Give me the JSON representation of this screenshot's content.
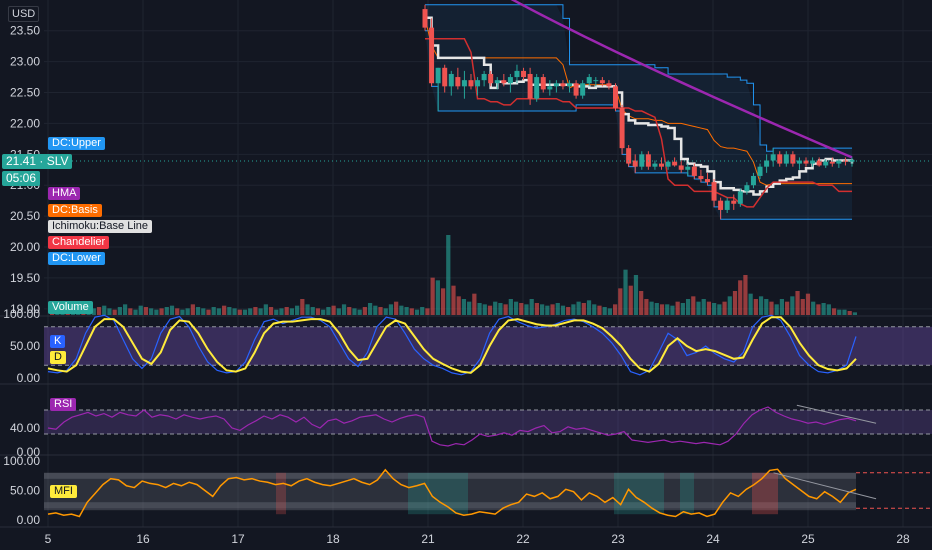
{
  "currency": "USD",
  "symbol": "SLV",
  "last_price": "21.41",
  "countdown": "05:06",
  "legend": [
    {
      "id": "dc_upper",
      "label": "DC:Upper",
      "bg": "#2196f3",
      "fg": "#ffffff"
    },
    {
      "id": "hma",
      "label": "HMA",
      "bg": "#9c27b0",
      "fg": "#ffffff"
    },
    {
      "id": "dc_basis",
      "label": "DC:Basis",
      "bg": "#ff6d00",
      "fg": "#ffffff"
    },
    {
      "id": "ichimoku",
      "label": "Ichimoku:Base Line",
      "bg": "#e0e0e0",
      "fg": "#131722"
    },
    {
      "id": "chandelier",
      "label": "Chandelier",
      "bg": "#f23645",
      "fg": "#ffffff"
    },
    {
      "id": "dc_lower",
      "label": "DC:Lower",
      "bg": "#2196f3",
      "fg": "#ffffff"
    },
    {
      "id": "volume",
      "label": "Volume",
      "bg": "#26a69a",
      "fg": "#ffffff"
    }
  ],
  "osc_labels": [
    {
      "id": "k",
      "label": "K",
      "bg": "#2962ff",
      "fg": "#ffffff"
    },
    {
      "id": "d",
      "label": "D",
      "bg": "#ffeb3b",
      "fg": "#131722"
    },
    {
      "id": "rsi",
      "label": "RSI",
      "bg": "#9c27b0",
      "fg": "#ffffff"
    },
    {
      "id": "mfi",
      "label": "MFI",
      "bg": "#ffeb3b",
      "fg": "#131722"
    }
  ],
  "colors": {
    "up": "#26a69a",
    "down": "#ef5350",
    "hma": "#9c27b0",
    "ichimoku": "#e6e6e6",
    "dc": "#2196f3",
    "dc_basis": "#ff6d00",
    "chandelier": "#d32f2f",
    "k": "#2962ff",
    "d": "#ffeb3b",
    "rsi": "#9c27b0",
    "mfi": "#ff9800"
  },
  "chart_data": {
    "type": "candlestick",
    "x_ticks": [
      "5",
      "16",
      "17",
      "18",
      "21",
      "22",
      "23",
      "24",
      "25",
      "28"
    ],
    "price_axis": {
      "ticks": [
        "23.50",
        "23.00",
        "22.50",
        "22.00",
        "21.50",
        "21.00",
        "20.50",
        "20.00",
        "19.50",
        "19.00"
      ],
      "range": [
        18.9,
        23.9
      ]
    },
    "stoch_axis": {
      "ticks": [
        "100.00",
        "50.00",
        "0.00"
      ],
      "levels": [
        80,
        20
      ]
    },
    "rsi_axis": {
      "ticks": [
        "40.00",
        "0.00"
      ],
      "levels": [
        70,
        30
      ]
    },
    "mfi_axis": {
      "ticks": [
        "100.00",
        "50.00",
        "0.00"
      ],
      "levels": [
        80,
        20
      ]
    },
    "candles": [
      {
        "o": 23.85,
        "h": 23.92,
        "l": 23.5,
        "c": 23.55
      },
      {
        "o": 23.55,
        "h": 23.7,
        "l": 22.6,
        "c": 22.65
      },
      {
        "o": 22.65,
        "h": 22.9,
        "l": 22.2,
        "c": 22.9
      },
      {
        "o": 22.9,
        "h": 22.95,
        "l": 22.5,
        "c": 22.6
      },
      {
        "o": 22.6,
        "h": 22.85,
        "l": 22.45,
        "c": 22.8
      },
      {
        "o": 22.75,
        "h": 22.9,
        "l": 22.55,
        "c": 22.6
      },
      {
        "o": 22.6,
        "h": 22.85,
        "l": 22.4,
        "c": 22.7
      },
      {
        "o": 22.7,
        "h": 22.8,
        "l": 22.55,
        "c": 22.6
      },
      {
        "o": 22.6,
        "h": 22.75,
        "l": 22.45,
        "c": 22.7
      },
      {
        "o": 22.7,
        "h": 22.85,
        "l": 22.6,
        "c": 22.8
      },
      {
        "o": 22.8,
        "h": 22.85,
        "l": 22.6,
        "c": 22.65
      },
      {
        "o": 22.65,
        "h": 22.75,
        "l": 22.55,
        "c": 22.7
      },
      {
        "o": 22.7,
        "h": 22.8,
        "l": 22.6,
        "c": 22.65
      },
      {
        "o": 22.65,
        "h": 22.8,
        "l": 22.5,
        "c": 22.75
      },
      {
        "o": 22.75,
        "h": 22.95,
        "l": 22.65,
        "c": 22.85
      },
      {
        "o": 22.85,
        "h": 22.9,
        "l": 22.7,
        "c": 22.75
      },
      {
        "o": 22.8,
        "h": 22.9,
        "l": 22.3,
        "c": 22.4
      },
      {
        "o": 22.4,
        "h": 22.8,
        "l": 22.35,
        "c": 22.75
      },
      {
        "o": 22.75,
        "h": 22.8,
        "l": 22.5,
        "c": 22.55
      },
      {
        "o": 22.55,
        "h": 22.7,
        "l": 22.45,
        "c": 22.6
      },
      {
        "o": 22.6,
        "h": 22.7,
        "l": 22.5,
        "c": 22.65
      },
      {
        "o": 22.65,
        "h": 22.7,
        "l": 22.55,
        "c": 22.6
      },
      {
        "o": 22.6,
        "h": 22.7,
        "l": 22.5,
        "c": 22.65
      },
      {
        "o": 22.65,
        "h": 22.7,
        "l": 22.4,
        "c": 22.45
      },
      {
        "o": 22.45,
        "h": 22.7,
        "l": 22.4,
        "c": 22.65
      },
      {
        "o": 22.65,
        "h": 22.8,
        "l": 22.6,
        "c": 22.75
      },
      {
        "o": 22.7,
        "h": 22.75,
        "l": 22.6,
        "c": 22.7
      },
      {
        "o": 22.7,
        "h": 22.75,
        "l": 22.6,
        "c": 22.65
      },
      {
        "o": 22.65,
        "h": 22.7,
        "l": 22.55,
        "c": 22.6
      },
      {
        "o": 22.6,
        "h": 22.65,
        "l": 22.2,
        "c": 22.25
      },
      {
        "o": 22.25,
        "h": 22.3,
        "l": 21.5,
        "c": 21.6
      },
      {
        "o": 21.6,
        "h": 21.65,
        "l": 21.3,
        "c": 21.35
      },
      {
        "o": 21.4,
        "h": 21.5,
        "l": 21.2,
        "c": 21.3
      },
      {
        "o": 21.3,
        "h": 21.55,
        "l": 21.25,
        "c": 21.5
      },
      {
        "o": 21.5,
        "h": 21.55,
        "l": 21.25,
        "c": 21.3
      },
      {
        "o": 21.3,
        "h": 21.4,
        "l": 21.25,
        "c": 21.35
      },
      {
        "o": 21.35,
        "h": 21.45,
        "l": 21.25,
        "c": 21.3
      },
      {
        "o": 21.3,
        "h": 21.4,
        "l": 21.25,
        "c": 21.38
      },
      {
        "o": 21.38,
        "h": 21.45,
        "l": 21.3,
        "c": 21.32
      },
      {
        "o": 21.32,
        "h": 21.4,
        "l": 21.2,
        "c": 21.25
      },
      {
        "o": 21.25,
        "h": 21.35,
        "l": 21.15,
        "c": 21.3
      },
      {
        "o": 21.3,
        "h": 21.35,
        "l": 21.1,
        "c": 21.15
      },
      {
        "o": 21.15,
        "h": 21.25,
        "l": 21.05,
        "c": 21.1
      },
      {
        "o": 21.1,
        "h": 21.2,
        "l": 21.0,
        "c": 21.05
      },
      {
        "o": 21.05,
        "h": 21.1,
        "l": 20.65,
        "c": 20.75
      },
      {
        "o": 20.75,
        "h": 20.8,
        "l": 20.45,
        "c": 20.6
      },
      {
        "o": 20.6,
        "h": 20.8,
        "l": 20.55,
        "c": 20.75
      },
      {
        "o": 20.75,
        "h": 20.85,
        "l": 20.6,
        "c": 20.7
      },
      {
        "o": 20.7,
        "h": 20.95,
        "l": 20.65,
        "c": 20.9
      },
      {
        "o": 20.9,
        "h": 21.05,
        "l": 20.85,
        "c": 21.0
      },
      {
        "o": 21.0,
        "h": 21.2,
        "l": 20.95,
        "c": 21.15
      },
      {
        "o": 21.15,
        "h": 21.35,
        "l": 21.1,
        "c": 21.3
      },
      {
        "o": 21.3,
        "h": 21.5,
        "l": 21.2,
        "c": 21.4
      },
      {
        "o": 21.4,
        "h": 21.6,
        "l": 21.3,
        "c": 21.5
      },
      {
        "o": 21.5,
        "h": 21.55,
        "l": 21.3,
        "c": 21.35
      },
      {
        "o": 21.35,
        "h": 21.55,
        "l": 21.3,
        "c": 21.5
      },
      {
        "o": 21.5,
        "h": 21.55,
        "l": 21.3,
        "c": 21.35
      },
      {
        "o": 21.35,
        "h": 21.45,
        "l": 21.25,
        "c": 21.4
      },
      {
        "o": 21.4,
        "h": 21.45,
        "l": 21.3,
        "c": 21.35
      },
      {
        "o": 21.35,
        "h": 21.45,
        "l": 21.3,
        "c": 21.4
      },
      {
        "o": 21.4,
        "h": 21.45,
        "l": 21.3,
        "c": 21.32
      },
      {
        "o": 21.32,
        "h": 21.42,
        "l": 21.28,
        "c": 21.38
      },
      {
        "o": 21.38,
        "h": 21.45,
        "l": 21.3,
        "c": 21.35
      },
      {
        "o": 21.35,
        "h": 21.42,
        "l": 21.28,
        "c": 21.4
      },
      {
        "o": 21.4,
        "h": 21.45,
        "l": 21.32,
        "c": 21.38
      },
      {
        "o": 21.38,
        "h": 21.45,
        "l": 21.3,
        "c": 21.41
      }
    ],
    "volume": [
      5,
      4,
      3,
      4,
      6,
      4,
      5,
      4,
      5,
      6,
      7,
      5,
      4,
      6,
      8,
      5,
      4,
      7,
      6,
      5,
      4,
      5,
      6,
      7,
      5,
      4,
      5,
      8,
      6,
      5,
      4,
      6,
      5,
      7,
      6,
      5,
      4,
      4,
      5,
      6,
      5,
      8,
      6,
      4,
      5,
      6,
      5,
      7,
      12,
      8,
      6,
      5,
      4,
      6,
      7,
      5,
      8,
      6,
      5,
      4,
      6,
      9,
      7,
      6,
      5,
      8,
      10,
      7,
      6,
      5,
      4,
      6,
      5,
      28,
      26,
      20,
      60,
      22,
      14,
      12,
      10,
      16,
      9,
      8,
      7,
      10,
      9,
      8,
      12,
      10,
      9,
      8,
      12,
      9,
      8,
      7,
      8,
      9,
      7,
      6,
      8,
      10,
      9,
      11,
      8,
      7,
      6,
      5,
      8,
      20,
      34,
      22,
      30,
      18,
      12,
      10,
      9,
      8,
      8,
      7,
      10,
      9,
      12,
      14,
      10,
      12,
      10,
      9,
      8,
      10,
      14,
      18,
      26,
      30,
      16,
      12,
      14,
      12,
      10,
      8,
      12,
      10,
      14,
      18,
      12,
      16,
      10,
      8,
      9,
      8,
      5,
      4,
      4,
      3,
      2
    ],
    "stoch_k": [
      10,
      8,
      12,
      30,
      70,
      95,
      98,
      90,
      60,
      30,
      15,
      30,
      70,
      92,
      96,
      80,
      50,
      25,
      12,
      8,
      10,
      25,
      60,
      88,
      92,
      85,
      90,
      95,
      95,
      90,
      80,
      55,
      30,
      18,
      40,
      80,
      95,
      92,
      70,
      45,
      30,
      20,
      15,
      8,
      5,
      10,
      30,
      70,
      92,
      96,
      88,
      82,
      78,
      80,
      84,
      90,
      92,
      88,
      80,
      70,
      55,
      35,
      10,
      5,
      12,
      40,
      70,
      60,
      35,
      40,
      50,
      38,
      30,
      25,
      40,
      80,
      95,
      98,
      90,
      65,
      35,
      20,
      10,
      8,
      12,
      20,
      65
    ],
    "stoch_d": [
      15,
      12,
      10,
      20,
      50,
      80,
      92,
      92,
      80,
      55,
      30,
      22,
      40,
      75,
      90,
      88,
      70,
      45,
      25,
      12,
      10,
      15,
      40,
      70,
      85,
      88,
      88,
      90,
      92,
      92,
      88,
      70,
      45,
      28,
      30,
      55,
      80,
      90,
      85,
      65,
      45,
      30,
      22,
      15,
      10,
      8,
      20,
      50,
      75,
      90,
      92,
      88,
      84,
      82,
      82,
      86,
      90,
      90,
      85,
      78,
      65,
      50,
      30,
      15,
      10,
      22,
      50,
      62,
      50,
      42,
      45,
      42,
      36,
      30,
      32,
      60,
      85,
      95,
      95,
      80,
      55,
      35,
      20,
      14,
      12,
      15,
      30
    ],
    "rsi": [
      40,
      38,
      50,
      58,
      62,
      66,
      60,
      64,
      58,
      66,
      62,
      60,
      70,
      58,
      62,
      60,
      55,
      62,
      58,
      55,
      58,
      60,
      55,
      40,
      36,
      45,
      52,
      60,
      55,
      62,
      58,
      50,
      58,
      46,
      40,
      52,
      55,
      48,
      52,
      58,
      60,
      62,
      55,
      50,
      56,
      60,
      62,
      58,
      18,
      12,
      10,
      14,
      12,
      20,
      30,
      26,
      28,
      32,
      28,
      36,
      34,
      40,
      44,
      32,
      34,
      42,
      38,
      40,
      36,
      32,
      28,
      30,
      34,
      20,
      18,
      16,
      18,
      20,
      16,
      18,
      16,
      14,
      16,
      14,
      12,
      18,
      30,
      48,
      62,
      70,
      75,
      66,
      60,
      55,
      52,
      48,
      50,
      46,
      50,
      54,
      56,
      52
    ],
    "rsi_trend": [
      [
        0.855,
        78
      ],
      [
        0.94,
        48
      ]
    ],
    "mfi": [
      10,
      12,
      8,
      10,
      6,
      30,
      45,
      60,
      70,
      68,
      58,
      55,
      66,
      62,
      60,
      55,
      62,
      58,
      64,
      60,
      50,
      40,
      58,
      70,
      72,
      68,
      70,
      66,
      64,
      60,
      62,
      58,
      66,
      70,
      64,
      60,
      58,
      62,
      66,
      70,
      64,
      60,
      68,
      85,
      70,
      60,
      55,
      58,
      62,
      40,
      30,
      22,
      12,
      8,
      10,
      14,
      12,
      10,
      20,
      26,
      30,
      44,
      40,
      46,
      36,
      40,
      52,
      48,
      34,
      46,
      40,
      30,
      38,
      26,
      52,
      38,
      30,
      20,
      12,
      8,
      6,
      14,
      10,
      12,
      6,
      10,
      30,
      46,
      40,
      52,
      60,
      70,
      84,
      86,
      70,
      60,
      50,
      40,
      36,
      48,
      40,
      30,
      46,
      52
    ],
    "mfi_trend": [
      [
        0.83,
        80
      ],
      [
        0.94,
        36
      ]
    ]
  }
}
